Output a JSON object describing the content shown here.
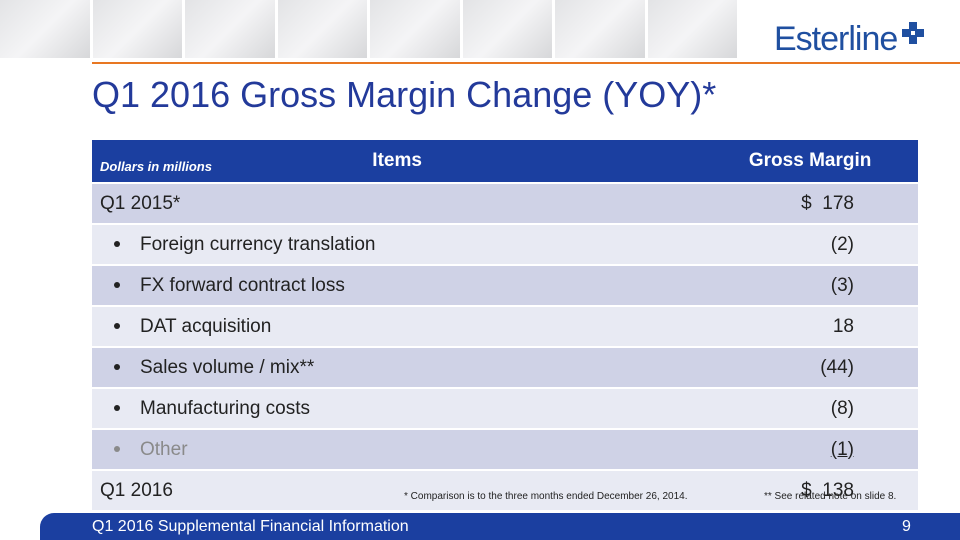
{
  "header": {
    "title": "Q1 2016 Gross Margin Change (YOY)*",
    "logo": "Esterline"
  },
  "table": {
    "note": "Dollars in millions",
    "columns": [
      "Items",
      "Gross Margin"
    ],
    "rows": [
      {
        "item": "Q1 2015*",
        "gross_margin": "$  178",
        "bullet": false
      },
      {
        "item": "Foreign currency translation",
        "gross_margin": "(2)",
        "bullet": true
      },
      {
        "item": "FX forward contract loss",
        "gross_margin": "(3)",
        "bullet": true
      },
      {
        "item": "DAT acquisition",
        "gross_margin": "18",
        "bullet": true
      },
      {
        "item": "Sales volume / mix**",
        "gross_margin": "(44)",
        "bullet": true
      },
      {
        "item": "Manufacturing costs",
        "gross_margin": "(8)",
        "bullet": true
      },
      {
        "item": "Other",
        "gross_margin": "(1)",
        "bullet": true
      },
      {
        "item": "Q1 2016",
        "gross_margin": "$  138",
        "bullet": false
      }
    ]
  },
  "footnotes": [
    "* Comparison is to the three months ended December 26, 2014.",
    "** See related note on slide 8."
  ],
  "footer": {
    "text": "Q1 2016 Supplemental Financial Information",
    "page": "9"
  }
}
